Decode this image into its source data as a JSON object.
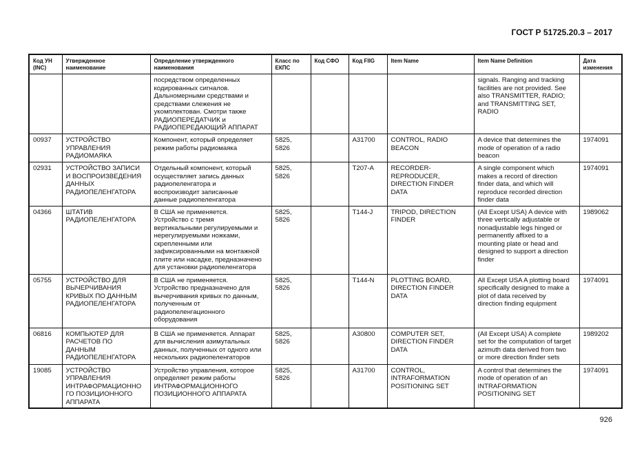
{
  "header": {
    "title": "ГОСТ Р 51725.20.3 – 2017"
  },
  "footer": {
    "page_number": "926"
  },
  "table": {
    "columns": [
      "Код УН\n(INC)",
      "Утвержденное\nнаименование",
      "Определение утвержденного\nнаименования",
      "Класс по\nЕКПС",
      "Код СФО",
      "Код FIIG",
      "Item Name",
      "Item Name Definition",
      "Дата\nизменения"
    ],
    "rows": [
      [
        "",
        "",
        "посредством определенных\nкодированных сигналов.\nДальномерными средствами и\nсредствами слежения не\nукомплектован. Смотри также\nРАДИОПЕРЕДАТЧИК и\nРАДИОПЕРЕДАЮЩИЙ АППАРАТ",
        "",
        "",
        "",
        "",
        "signals. Ranging and tracking\nfacilities are not provided. See\nalso TRANSMITTER, RADIO;\nand TRANSMITTING SET,\nRADIO",
        ""
      ],
      [
        "00937",
        "УСТРОЙСТВО\nУПРАВЛЕНИЯ\nРАДИОМАЯКА",
        "Компонент, который определяет\nрежим работы радиомаяка",
        "5825,\n5826",
        "",
        "A31700",
        "CONTROL, RADIO\nBEACON",
        "A device that determines the\nmode of operation of a radio\nbeacon",
        "1974091"
      ],
      [
        "02931",
        "УСТРОЙСТВО ЗАПИСИ\nИ ВОСПРОИЗВЕДЕНИЯ\nДАННЫХ\nРАДИОПЕЛЕНГАТОРА",
        "Отдельный компонент, который\nосуществляет запись данных\nрадиопеленгатора и\nвоспроизводит записанные\nданные радиопеленгатора",
        "5825,\n5826",
        "",
        "T207-A",
        "RECORDER-\nREPRODUCER,\nDIRECTION FINDER\nDATA",
        "A single component which\nmakes a record of direction\nfinder data, and which will\nreproduce recorded direction\nfinder data",
        "1974091"
      ],
      [
        "04366",
        "ШТАТИВ\nРАДИОПЕЛЕНГАТОРА",
        "В США не применяется.\nУстройство с тремя\nвертикальными регулируемыми и\nнерегулируемыми ножками,\nскрепленными или\nзафиксированными на монтажной\nплите или насадке, предназначено\nдля установки радиопеленгатора",
        "5825,\n5826",
        "",
        "T144-J",
        "TRIPOD, DIRECTION\nFINDER",
        "(All Except USA) A device with\nthree vertically adjustable or\nnonadjustable legs hinged or\npermanently affixed to a\nmounting plate or head and\ndesigned to support a direction\nfinder",
        "1989062"
      ],
      [
        "05755",
        "УСТРОЙСТВО ДЛЯ\nВЫЧЕРЧИВАНИЯ\nКРИВЫХ ПО ДАННЫМ\nРАДИОПЕЛЕНГАТОРА",
        "В США не применяется.\nУстройство предназначено для\nвычерчивания кривых по данным,\nполученным от\nрадиопеленгационного\nоборудования",
        "5825,\n5826",
        "",
        "T144-N",
        "PLOTTING BOARD,\nDIRECTION FINDER\nDATA",
        "All Except USA A plotting board\nspecifically designed to make a\nplot of data received by\ndirection finding equipment",
        "1974091"
      ],
      [
        "06816",
        "КОМПЬЮТЕР ДЛЯ\nРАСЧЕТОВ ПО\nДАННЫМ\nРАДИОПЕЛЕНГАТОРА",
        "В США не применяется. Аппарат\nдля вычисления азимутальных\nданных, полученных от одного или\nнескольких радиопеленгаторов",
        "5825,\n5826",
        "",
        "A30800",
        "COMPUTER SET,\nDIRECTION FINDER\nDATA",
        "(All Except USA) A complete\nset for the computation of target\nazimuth data derived from two\nor more direction finder sets",
        "1989202"
      ],
      [
        "19085",
        "УСТРОЙСТВО\nУПРАВЛЕНИЯ\nИНТРАФОРМАЦИОННО\nГО ПОЗИЦИОННОГО\nАППАРАТА",
        "Устройство управления, которое\nопределяет режим работы\nИНТРАФОРМАЦИОННОГО\nПОЗИЦИОННОГО АППАРАТА",
        "5825,\n5826",
        "",
        "A31700",
        "CONTROL,\nINTRAFORMATION\nPOSITIONING SET",
        "A control that determines the\nmode of operation of an\nINTRAFORMATION\nPOSITIONING SET",
        "1974091"
      ]
    ]
  }
}
